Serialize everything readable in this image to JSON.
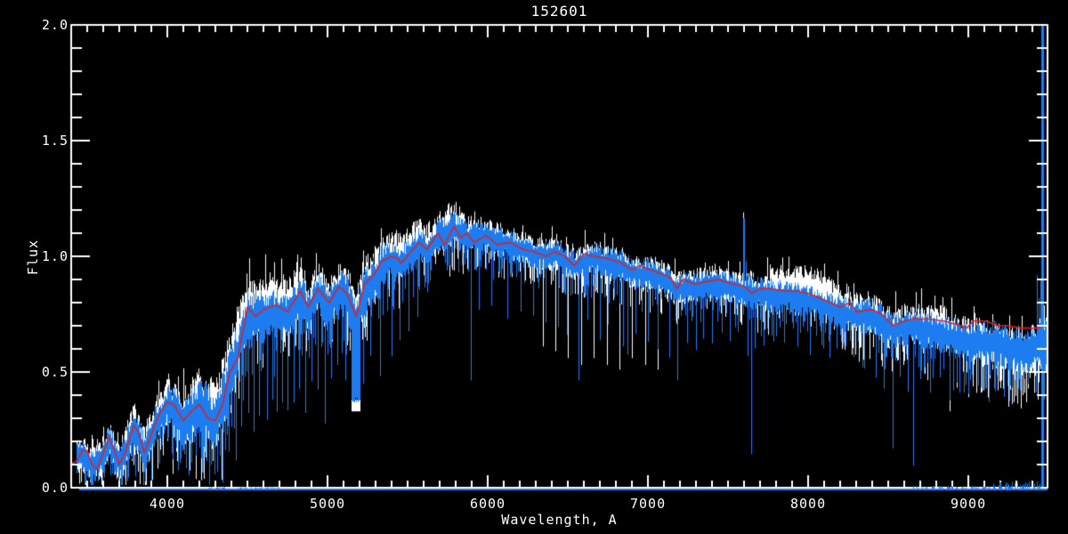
{
  "chart_data": {
    "type": "line",
    "title": "152601",
    "xlabel": "Wavelength, A",
    "ylabel": "Flux",
    "xlim": [
      3400,
      9494
    ],
    "ylim": [
      0.0,
      2.0
    ],
    "grid": false,
    "legend": null,
    "background_color": "#000000",
    "axis_color": "#ffffff",
    "x_major_ticks": [
      4000,
      5000,
      6000,
      7000,
      8000,
      9000
    ],
    "x_tick_labels": [
      "4000",
      "5000",
      "6000",
      "7000",
      "8000",
      "9000"
    ],
    "x_minor_step": 100,
    "y_major_ticks": [
      0.0,
      0.5,
      1.0,
      1.5,
      2.0
    ],
    "y_tick_labels": [
      "0.0",
      "0.5",
      "1.0",
      "1.5",
      "2.0"
    ],
    "y_minor_step": 0.1,
    "seed": 7,
    "data_start_wavelength": 3436,
    "series": [
      {
        "name": "observed-spectrum-white",
        "color": "#ffffff",
        "role": "noisy observed spectrum drawn behind"
      },
      {
        "name": "observed-spectrum-blue",
        "color": "#1c7cf0",
        "role": "noisy spectrum drawn on top"
      },
      {
        "name": "template-fit-red",
        "color": "#dd2222",
        "role": "smooth template fit"
      }
    ],
    "template_points": [
      [
        3400,
        0.1
      ],
      [
        3440,
        0.12
      ],
      [
        3470,
        0.16
      ],
      [
        3500,
        0.16
      ],
      [
        3530,
        0.1
      ],
      [
        3560,
        0.08
      ],
      [
        3600,
        0.15
      ],
      [
        3635,
        0.22
      ],
      [
        3660,
        0.18
      ],
      [
        3700,
        0.1
      ],
      [
        3740,
        0.16
      ],
      [
        3790,
        0.27
      ],
      [
        3820,
        0.24
      ],
      [
        3855,
        0.15
      ],
      [
        3890,
        0.21
      ],
      [
        3925,
        0.28
      ],
      [
        3960,
        0.33
      ],
      [
        4000,
        0.37
      ],
      [
        4040,
        0.36
      ],
      [
        4100,
        0.29
      ],
      [
        4150,
        0.33
      ],
      [
        4200,
        0.36
      ],
      [
        4255,
        0.3
      ],
      [
        4300,
        0.29
      ],
      [
        4345,
        0.36
      ],
      [
        4390,
        0.5
      ],
      [
        4440,
        0.56
      ],
      [
        4500,
        0.78
      ],
      [
        4550,
        0.74
      ],
      [
        4600,
        0.77
      ],
      [
        4680,
        0.79
      ],
      [
        4750,
        0.76
      ],
      [
        4830,
        0.85
      ],
      [
        4880,
        0.78
      ],
      [
        4940,
        0.86
      ],
      [
        5010,
        0.8
      ],
      [
        5070,
        0.87
      ],
      [
        5120,
        0.84
      ],
      [
        5180,
        0.74
      ],
      [
        5230,
        0.88
      ],
      [
        5290,
        0.92
      ],
      [
        5340,
        0.98
      ],
      [
        5400,
        1.0
      ],
      [
        5440,
        0.99
      ],
      [
        5460,
        0.97
      ],
      [
        5570,
        1.06
      ],
      [
        5620,
        1.03
      ],
      [
        5690,
        1.1
      ],
      [
        5730,
        1.05
      ],
      [
        5790,
        1.13
      ],
      [
        5830,
        1.08
      ],
      [
        5870,
        1.1
      ],
      [
        5915,
        1.06
      ],
      [
        5990,
        1.09
      ],
      [
        6060,
        1.05
      ],
      [
        6140,
        1.06
      ],
      [
        6220,
        1.03
      ],
      [
        6290,
        1.02
      ],
      [
        6360,
        1.0
      ],
      [
        6420,
        1.02
      ],
      [
        6480,
        1.0
      ],
      [
        6540,
        0.96
      ],
      [
        6600,
        1.01
      ],
      [
        6660,
        1.0
      ],
      [
        6750,
        0.99
      ],
      [
        6840,
        0.97
      ],
      [
        6900,
        0.94
      ],
      [
        6950,
        0.96
      ],
      [
        7060,
        0.93
      ],
      [
        7140,
        0.91
      ],
      [
        7180,
        0.86
      ],
      [
        7220,
        0.9
      ],
      [
        7290,
        0.88
      ],
      [
        7360,
        0.89
      ],
      [
        7440,
        0.9
      ],
      [
        7530,
        0.88
      ],
      [
        7600,
        0.87
      ],
      [
        7650,
        0.84
      ],
      [
        7700,
        0.86
      ],
      [
        7760,
        0.86
      ],
      [
        7850,
        0.85
      ],
      [
        7920,
        0.85
      ],
      [
        8000,
        0.84
      ],
      [
        8070,
        0.82
      ],
      [
        8140,
        0.8
      ],
      [
        8200,
        0.78
      ],
      [
        8260,
        0.8
      ],
      [
        8300,
        0.76
      ],
      [
        8400,
        0.77
      ],
      [
        8460,
        0.75
      ],
      [
        8530,
        0.7
      ],
      [
        8600,
        0.72
      ],
      [
        8660,
        0.73
      ],
      [
        8740,
        0.73
      ],
      [
        8850,
        0.72
      ],
      [
        8950,
        0.7
      ],
      [
        8990,
        0.69
      ],
      [
        9030,
        0.72
      ],
      [
        9110,
        0.72
      ],
      [
        9180,
        0.7
      ],
      [
        9250,
        0.7
      ],
      [
        9330,
        0.69
      ],
      [
        9420,
        0.69
      ],
      [
        9494,
        0.7
      ]
    ],
    "blue_center_points": [
      [
        3400,
        0.1
      ],
      [
        3470,
        0.15
      ],
      [
        3530,
        0.09
      ],
      [
        3600,
        0.14
      ],
      [
        3635,
        0.2
      ],
      [
        3700,
        0.1
      ],
      [
        3790,
        0.26
      ],
      [
        3855,
        0.15
      ],
      [
        3925,
        0.27
      ],
      [
        4000,
        0.36
      ],
      [
        4100,
        0.28
      ],
      [
        4200,
        0.35
      ],
      [
        4300,
        0.28
      ],
      [
        4390,
        0.48
      ],
      [
        4500,
        0.74
      ],
      [
        4600,
        0.74
      ],
      [
        4680,
        0.76
      ],
      [
        4750,
        0.74
      ],
      [
        4830,
        0.82
      ],
      [
        4880,
        0.76
      ],
      [
        4940,
        0.84
      ],
      [
        5010,
        0.78
      ],
      [
        5070,
        0.85
      ],
      [
        5120,
        0.82
      ],
      [
        5180,
        0.72
      ],
      [
        5230,
        0.86
      ],
      [
        5290,
        0.9
      ],
      [
        5340,
        0.96
      ],
      [
        5400,
        0.99
      ],
      [
        5460,
        0.96
      ],
      [
        5570,
        1.05
      ],
      [
        5620,
        1.02
      ],
      [
        5690,
        1.09
      ],
      [
        5790,
        1.12
      ],
      [
        5870,
        1.08
      ],
      [
        5990,
        1.08
      ],
      [
        6140,
        1.05
      ],
      [
        6290,
        1.01
      ],
      [
        6420,
        1.01
      ],
      [
        6540,
        0.96
      ],
      [
        6660,
        0.99
      ],
      [
        6840,
        0.96
      ],
      [
        6900,
        0.93
      ],
      [
        7060,
        0.92
      ],
      [
        7180,
        0.86
      ],
      [
        7290,
        0.87
      ],
      [
        7440,
        0.88
      ],
      [
        7600,
        0.85
      ],
      [
        7700,
        0.84
      ],
      [
        7850,
        0.83
      ],
      [
        8000,
        0.81
      ],
      [
        8140,
        0.78
      ],
      [
        8200,
        0.76
      ],
      [
        8300,
        0.74
      ],
      [
        8400,
        0.74
      ],
      [
        8530,
        0.68
      ],
      [
        8660,
        0.7
      ],
      [
        8800,
        0.67
      ],
      [
        8950,
        0.64
      ],
      [
        9100,
        0.63
      ],
      [
        9250,
        0.61
      ],
      [
        9350,
        0.6
      ],
      [
        9450,
        0.62
      ],
      [
        9494,
        0.63
      ]
    ],
    "noise_amp_points": [
      [
        3400,
        0.05
      ],
      [
        3700,
        0.06
      ],
      [
        3950,
        0.07
      ],
      [
        4100,
        0.09
      ],
      [
        4300,
        0.1
      ],
      [
        4500,
        0.09
      ],
      [
        4700,
        0.08
      ],
      [
        5000,
        0.07
      ],
      [
        5200,
        0.08
      ],
      [
        5400,
        0.07
      ],
      [
        5600,
        0.06
      ],
      [
        5800,
        0.055
      ],
      [
        6000,
        0.05
      ],
      [
        6300,
        0.045
      ],
      [
        6600,
        0.05
      ],
      [
        6900,
        0.05
      ],
      [
        7200,
        0.05
      ],
      [
        7500,
        0.05
      ],
      [
        7700,
        0.055
      ],
      [
        8000,
        0.05
      ],
      [
        8300,
        0.06
      ],
      [
        8600,
        0.06
      ],
      [
        8900,
        0.065
      ],
      [
        9100,
        0.07
      ],
      [
        9300,
        0.075
      ],
      [
        9494,
        0.08
      ]
    ],
    "white_offset_points": [
      [
        3400,
        0.0
      ],
      [
        4250,
        0.02
      ],
      [
        4400,
        0.05
      ],
      [
        4600,
        0.06
      ],
      [
        4800,
        0.04
      ],
      [
        5000,
        0.02
      ],
      [
        5300,
        0.03
      ],
      [
        5500,
        0.04
      ],
      [
        5700,
        0.02
      ],
      [
        6000,
        0.01
      ],
      [
        6500,
        0.0
      ],
      [
        7000,
        0.0
      ],
      [
        7700,
        0.01
      ],
      [
        7850,
        0.05
      ],
      [
        7950,
        0.07
      ],
      [
        8050,
        0.07
      ],
      [
        8150,
        0.04
      ],
      [
        8250,
        0.01
      ],
      [
        8500,
        0.0
      ],
      [
        8700,
        0.02
      ],
      [
        8900,
        0.03
      ],
      [
        9000,
        0.0
      ],
      [
        9200,
        -0.02
      ],
      [
        9400,
        -0.02
      ],
      [
        9494,
        0.0
      ]
    ],
    "deep_absorption_spikes": [
      [
        3565,
        0.02
      ],
      [
        3712,
        0.04
      ],
      [
        3860,
        0.06
      ],
      [
        4032,
        0.12
      ],
      [
        4080,
        0.1
      ],
      [
        4132,
        0.16
      ],
      [
        4180,
        0.12
      ],
      [
        4216,
        0.06
      ],
      [
        4243,
        0.1
      ],
      [
        4272,
        0.08
      ],
      [
        4310,
        0.06
      ],
      [
        4344,
        0.02
      ],
      [
        4382,
        0.14
      ],
      [
        4428,
        0.1
      ],
      [
        4462,
        0.26
      ],
      [
        4505,
        0.32
      ],
      [
        4540,
        0.24
      ],
      [
        4572,
        0.31
      ],
      [
        4622,
        0.28
      ],
      [
        4655,
        0.36
      ],
      [
        4686,
        0.31
      ],
      [
        4714,
        0.36
      ],
      [
        4752,
        0.33
      ],
      [
        4790,
        0.36
      ],
      [
        4822,
        0.42
      ],
      [
        4862,
        0.31
      ],
      [
        4900,
        0.46
      ],
      [
        4940,
        0.41
      ],
      [
        4984,
        0.26
      ],
      [
        5022,
        0.46
      ],
      [
        5062,
        0.52
      ],
      [
        5112,
        0.46
      ],
      [
        5222,
        0.44
      ],
      [
        5268,
        0.56
      ],
      [
        5330,
        0.48
      ],
      [
        5402,
        0.56
      ],
      [
        5448,
        0.62
      ],
      [
        5505,
        0.66
      ],
      [
        5562,
        0.72
      ],
      [
        5892,
        0.45
      ],
      [
        5942,
        0.76
      ],
      [
        6022,
        0.78
      ],
      [
        6124,
        0.72
      ],
      [
        6205,
        0.76
      ],
      [
        6282,
        0.73
      ],
      [
        6362,
        0.71
      ],
      [
        6440,
        0.69
      ],
      [
        6496,
        0.66
      ],
      [
        6567,
        0.45
      ],
      [
        6622,
        0.71
      ],
      [
        6702,
        0.63
      ],
      [
        6752,
        0.69
      ],
      [
        6842,
        0.61
      ],
      [
        6872,
        0.56
      ],
      [
        6922,
        0.66
      ],
      [
        7002,
        0.63
      ],
      [
        7062,
        0.59
      ],
      [
        7132,
        0.56
      ],
      [
        7182,
        0.46
      ],
      [
        7242,
        0.61
      ],
      [
        7302,
        0.59
      ],
      [
        7342,
        0.63
      ],
      [
        7402,
        0.61
      ],
      [
        7462,
        0.66
      ],
      [
        7512,
        0.63
      ],
      [
        7562,
        0.67
      ],
      [
        7622,
        0.56
      ],
      [
        7642,
        0.13
      ],
      [
        7668,
        0.59
      ],
      [
        7722,
        0.61
      ],
      [
        7782,
        0.63
      ],
      [
        7852,
        0.61
      ],
      [
        7932,
        0.59
      ],
      [
        8012,
        0.56
      ],
      [
        8082,
        0.61
      ],
      [
        8132,
        0.56
      ],
      [
        8180,
        0.59
      ],
      [
        8232,
        0.61
      ],
      [
        8282,
        0.56
      ],
      [
        8352,
        0.51
      ],
      [
        8422,
        0.46
      ],
      [
        8472,
        0.41
      ],
      [
        8530,
        0.16
      ],
      [
        8572,
        0.46
      ],
      [
        8622,
        0.41
      ],
      [
        8657,
        0.09
      ],
      [
        8702,
        0.46
      ],
      [
        8762,
        0.41
      ],
      [
        8822,
        0.46
      ],
      [
        8882,
        0.36
      ],
      [
        8942,
        0.41
      ],
      [
        9002,
        0.39
      ],
      [
        9062,
        0.43
      ],
      [
        9112,
        0.41
      ],
      [
        9162,
        0.43
      ],
      [
        9222,
        0.39
      ],
      [
        9272,
        0.43
      ],
      [
        9322,
        0.41
      ],
      [
        9372,
        0.43
      ],
      [
        9422,
        0.41
      ],
      [
        9472,
        0.46
      ]
    ],
    "white_deep_spikes": [
      [
        4218,
        0.09
      ],
      [
        4346,
        0.05
      ],
      [
        5160,
        0.33
      ],
      [
        5186,
        0.34
      ],
      [
        6342,
        0.61
      ],
      [
        6422,
        0.59
      ],
      [
        6502,
        0.56
      ],
      [
        6582,
        0.53
      ],
      [
        6662,
        0.56
      ],
      [
        6742,
        0.53
      ],
      [
        6822,
        0.51
      ],
      [
        6902,
        0.56
      ],
      [
        6982,
        0.53
      ],
      [
        7062,
        0.51
      ],
      [
        8884,
        0.33
      ],
      [
        9052,
        0.41
      ],
      [
        9122,
        0.39
      ],
      [
        9202,
        0.43
      ],
      [
        9282,
        0.37
      ],
      [
        9352,
        0.41
      ],
      [
        9432,
        0.38
      ]
    ],
    "broad_dips": [
      {
        "from": 5148,
        "to": 5200,
        "floor": 0.36
      }
    ],
    "emission_spikes": [
      [
        7594,
        1.19
      ],
      [
        7602,
        1.05
      ],
      [
        7610,
        0.98
      ],
      [
        9425,
        0.92
      ],
      [
        9437,
        0.82
      ],
      [
        9449,
        0.9
      ]
    ],
    "offscale_spike": {
      "wavelength": 9461,
      "from_flux": 0.0,
      "to_flux": 2.0
    },
    "noise_floor": {
      "flux": 0.0,
      "from": 3452,
      "to": 9494,
      "bumps": [
        {
          "from": 4250,
          "to": 4700,
          "max_flux": 0.006
        },
        {
          "from": 8650,
          "to": 9150,
          "max_flux": 0.012
        },
        {
          "from": 9150,
          "to": 9455,
          "max_flux": 0.032
        }
      ]
    }
  }
}
